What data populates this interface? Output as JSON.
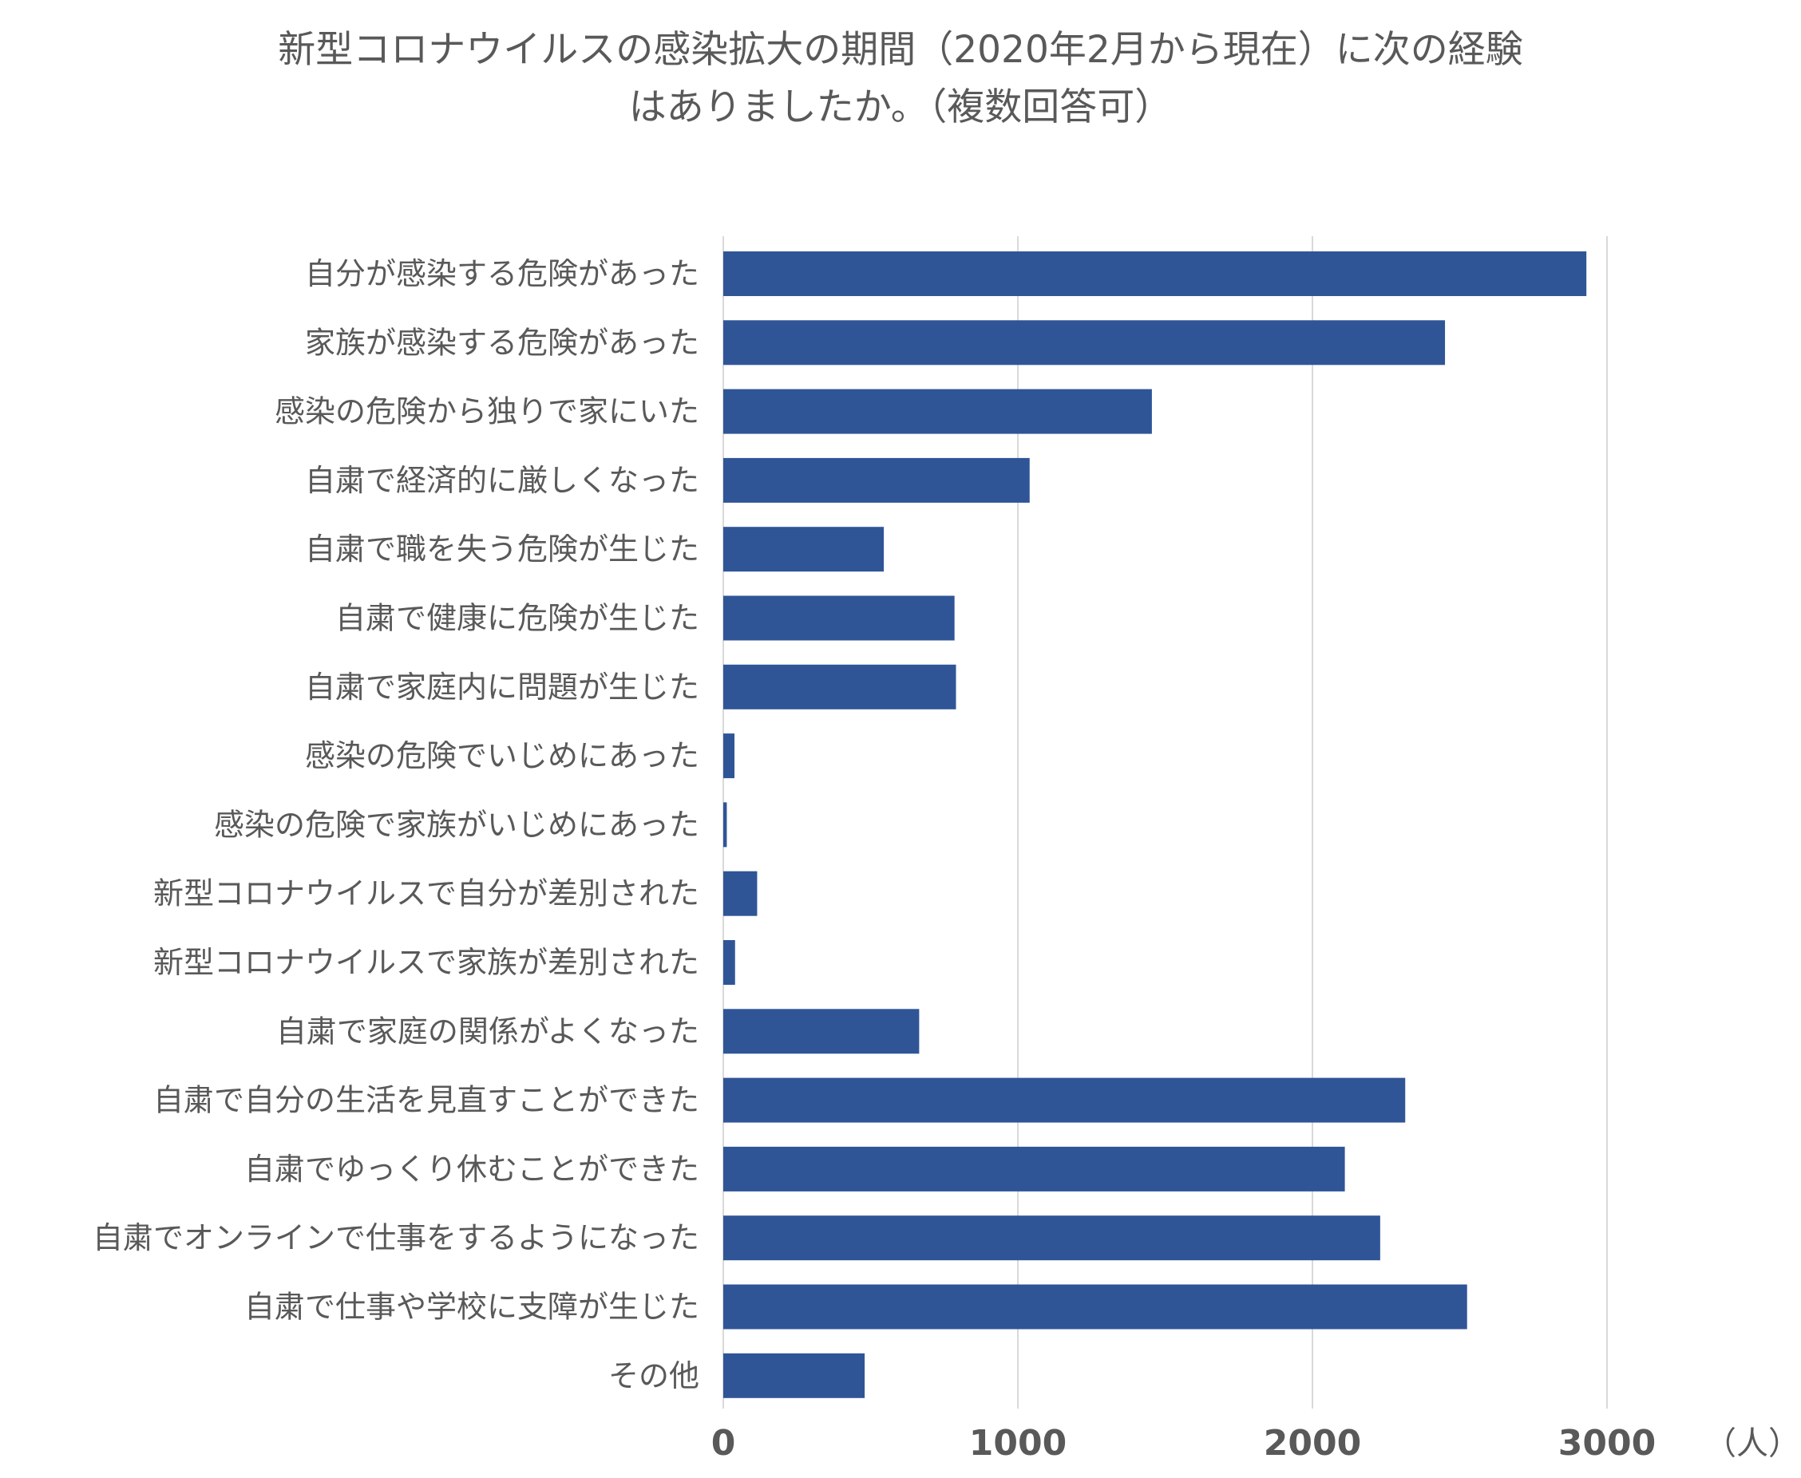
{
  "chart_data": {
    "type": "bar",
    "orientation": "horizontal",
    "title": "新型コロナウイルスの感染拡大の期間（2020年2月から現在）に次の経験はありましたか。（複数回答可）",
    "title_lines": [
      "新型コロナウイルスの感染拡大の期間（2020年2月から現在）に次の経験",
      "はありましたか。（複数回答可）"
    ],
    "unit_label": "（人）",
    "xlim": [
      0,
      3000
    ],
    "xticks": [
      0,
      1000,
      2000,
      3000
    ],
    "xtick_labels": [
      "0",
      "1000",
      "2000",
      "3000"
    ],
    "grid": true,
    "bar_color": "#2F5597",
    "categories": [
      "自分が感染する危険があった",
      "家族が感染する危険があった",
      "感染の危険から独りで家にいた",
      "自粛で経済的に厳しくなった",
      "自粛で職を失う危険が生じた",
      "自粛で健康に危険が生じた",
      "自粛で家庭内に問題が生じた",
      "感染の危険でいじめにあった",
      "感染の危険で家族がいじめにあった",
      "新型コロナウイルスで自分が差別された",
      "新型コロナウイルスで家族が差別された",
      "自粛で家庭の関係がよくなった",
      "自粛で自分の生活を見直すことができた",
      "自粛でゆっくり休むことができた",
      "自粛でオンラインで仕事をするようになった",
      "自粛で仕事や学校に支障が生じた",
      "その他"
    ],
    "values": [
      2930,
      2450,
      1455,
      1040,
      545,
      785,
      790,
      38,
      12,
      115,
      40,
      665,
      2315,
      2110,
      2230,
      2525,
      480
    ]
  }
}
